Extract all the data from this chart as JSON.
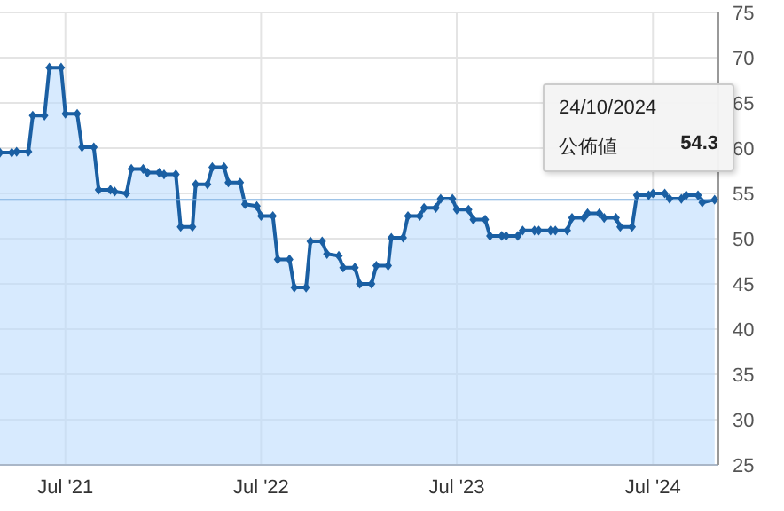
{
  "chart_data": {
    "type": "area",
    "series": [
      {
        "color": "#1a5fa3",
        "x": [
          "2021-03-01",
          "2021-03-23",
          "2021-04-01",
          "2021-04-23",
          "2021-05-01",
          "2021-05-23",
          "2021-06-01",
          "2021-06-23",
          "2021-07-01",
          "2021-07-23",
          "2021-08-01",
          "2021-08-23",
          "2021-09-01",
          "2021-09-23",
          "2021-10-01",
          "2021-10-23",
          "2021-11-01",
          "2021-11-23",
          "2021-12-01",
          "2021-12-23",
          "2022-01-01",
          "2022-01-23",
          "2022-02-01",
          "2022-02-23",
          "2022-03-01",
          "2022-03-23",
          "2022-04-01",
          "2022-04-23",
          "2022-05-01",
          "2022-05-23",
          "2022-06-01",
          "2022-06-23",
          "2022-07-01",
          "2022-07-23",
          "2022-08-01",
          "2022-08-23",
          "2022-09-01",
          "2022-09-23",
          "2022-10-01",
          "2022-10-23",
          "2022-11-01",
          "2022-11-23",
          "2022-12-01",
          "2022-12-23",
          "2023-01-01",
          "2023-01-23",
          "2023-02-01",
          "2023-02-23",
          "2023-03-01",
          "2023-03-23",
          "2023-04-01",
          "2023-04-23",
          "2023-05-01",
          "2023-05-23",
          "2023-06-01",
          "2023-06-23",
          "2023-07-01",
          "2023-07-23",
          "2023-08-01",
          "2023-08-23",
          "2023-09-01",
          "2023-09-23",
          "2023-10-01",
          "2023-10-23",
          "2023-11-01",
          "2023-11-23",
          "2023-12-01",
          "2023-12-23",
          "2024-01-01",
          "2024-01-23",
          "2024-02-01",
          "2024-02-23",
          "2024-03-01",
          "2024-03-23",
          "2024-04-01",
          "2024-04-23",
          "2024-05-01",
          "2024-05-23",
          "2024-06-01",
          "2024-06-23",
          "2024-07-01",
          "2024-07-23",
          "2024-08-01",
          "2024-08-23",
          "2024-09-01",
          "2024-09-23",
          "2024-10-01",
          "2024-10-24"
        ],
        "values": [
          59.5,
          59.5,
          59.6,
          59.6,
          63.6,
          63.6,
          68.9,
          68.9,
          63.8,
          63.8,
          60.1,
          60.1,
          55.4,
          55.4,
          55.2,
          55.0,
          57.7,
          57.7,
          57.3,
          57.3,
          57.1,
          57.1,
          51.3,
          51.3,
          56.0,
          56.0,
          57.9,
          57.9,
          56.2,
          56.2,
          53.8,
          53.6,
          52.5,
          52.5,
          47.7,
          47.7,
          44.6,
          44.6,
          49.7,
          49.7,
          48.3,
          48.1,
          46.8,
          46.8,
          45.0,
          45.0,
          47.0,
          47.0,
          50.1,
          50.1,
          52.5,
          52.5,
          53.4,
          53.4,
          54.4,
          54.4,
          53.2,
          53.2,
          52.1,
          52.1,
          50.3,
          50.3,
          50.3,
          50.3,
          50.9,
          50.9,
          50.9,
          50.9,
          50.9,
          50.9,
          52.3,
          52.3,
          52.8,
          52.8,
          52.3,
          52.3,
          51.3,
          51.3,
          54.8,
          54.8,
          55.0,
          55.0,
          54.4,
          54.4,
          54.8,
          54.8,
          54.0,
          54.3
        ]
      }
    ],
    "xlim": [
      "2021-03-01",
      "2024-10-31"
    ],
    "xticks": [
      {
        "value": "2021-07-01",
        "label": "Jul '21"
      },
      {
        "value": "2022-07-01",
        "label": "Jul '22"
      },
      {
        "value": "2023-07-01",
        "label": "Jul '23"
      },
      {
        "value": "2024-07-01",
        "label": "Jul '24"
      }
    ],
    "ylim": [
      25,
      75
    ],
    "yticks": [
      25,
      30,
      35,
      40,
      45,
      50,
      55,
      60,
      65,
      70,
      75
    ],
    "grid": true,
    "marker": "diamond",
    "line_style": "solid",
    "ref_lines": [
      {
        "axis": "y",
        "value": 54.3,
        "color": "#7fb0e0"
      }
    ],
    "annotations": [
      "24/10/2024",
      "公佈値",
      "54.3"
    ]
  }
}
